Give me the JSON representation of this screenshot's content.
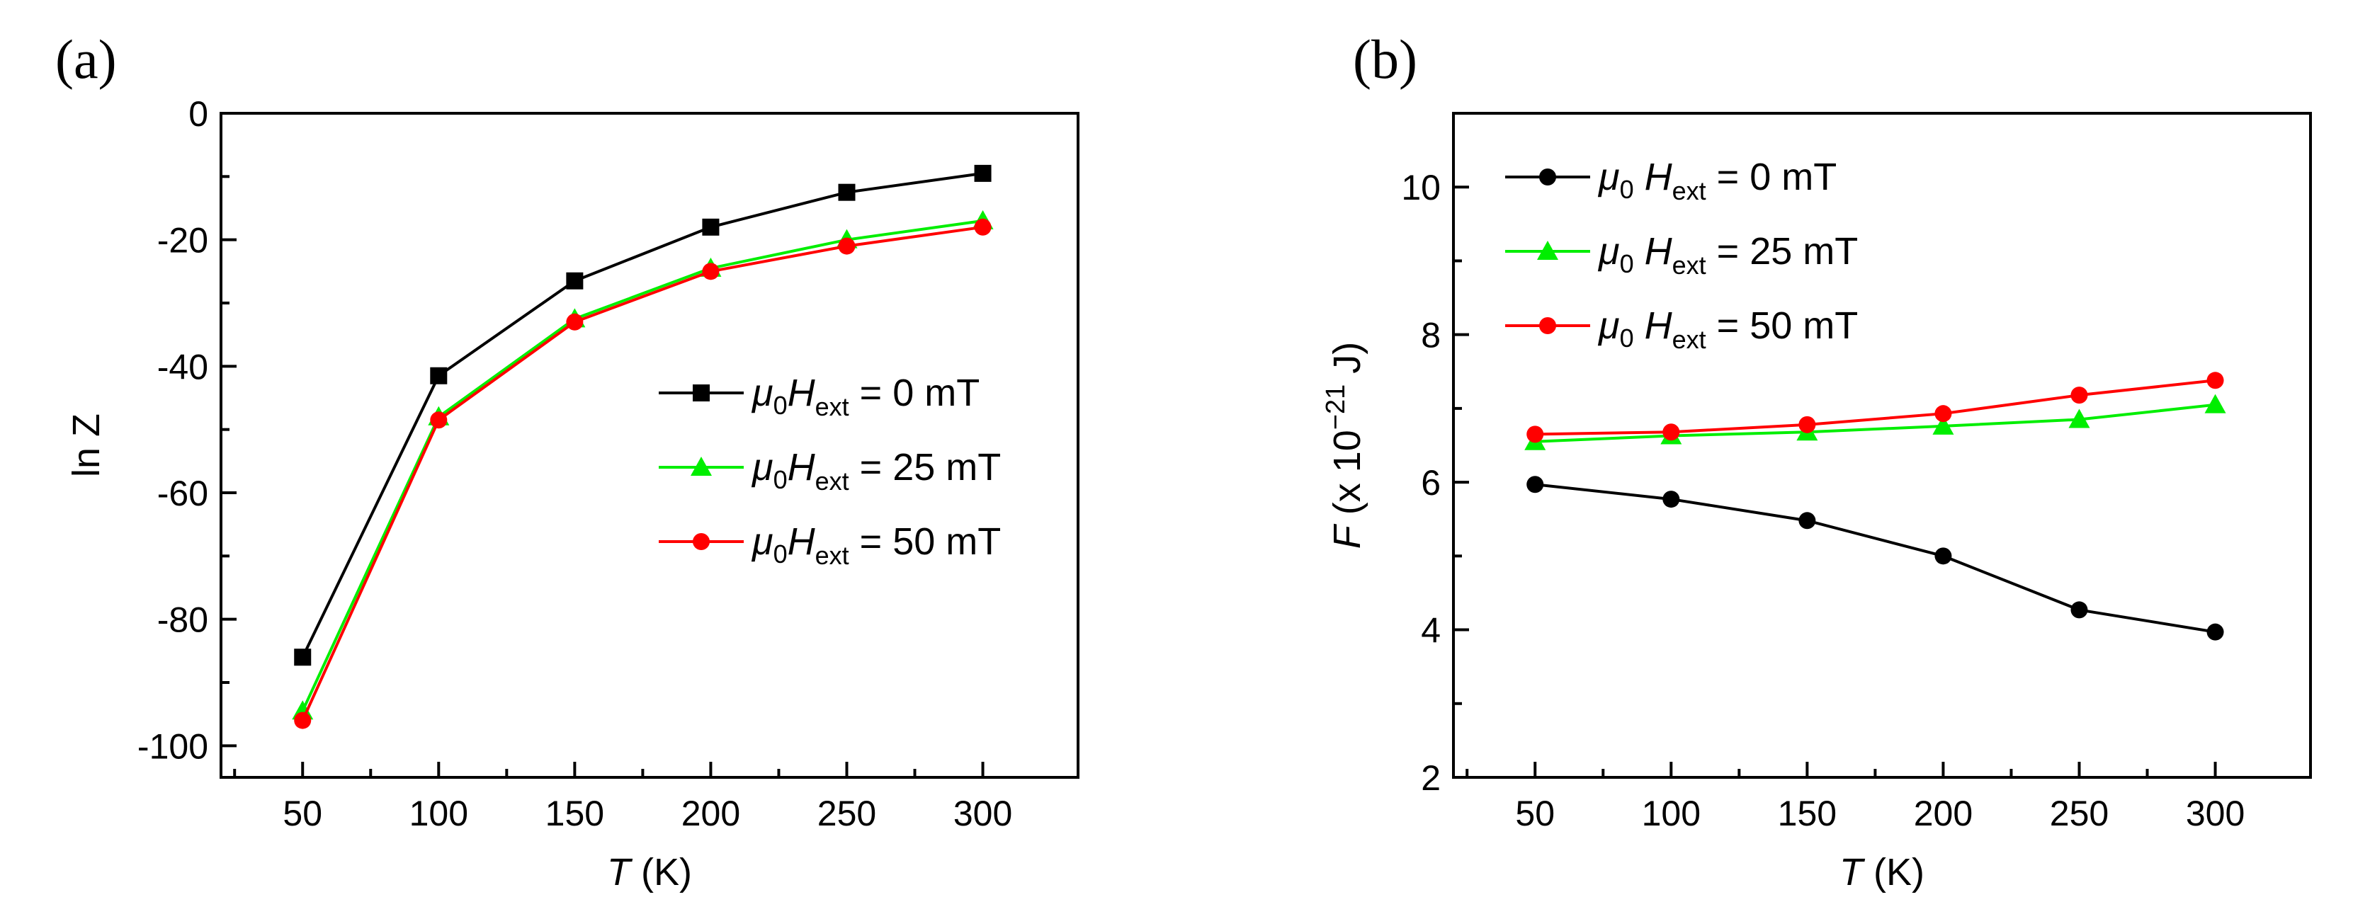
{
  "chart_data": [
    {
      "id": "a",
      "type": "line",
      "panel_label": "(a)",
      "x": [
        50,
        100,
        150,
        200,
        250,
        300
      ],
      "xticks": [
        50,
        100,
        150,
        200,
        250,
        300
      ],
      "xlim": [
        20,
        335
      ],
      "xlabel_italic": "T",
      "xlabel_rest": " (K)",
      "ylabel": "ln Z",
      "ylim": [
        -105,
        0
      ],
      "yticks": [
        0,
        -20,
        -40,
        -60,
        -80,
        -100
      ],
      "legend_position": "center-right",
      "series": [
        {
          "name": "μ0Hext = 0 mT",
          "mu": "μ",
          "mu_sub": "0",
          "h": "H",
          "h_sub": "ext",
          "value_text": " =  0 mT",
          "color": "#000000",
          "marker": "square",
          "values": [
            -86,
            -41.5,
            -26.5,
            -18,
            -12.5,
            -9.5
          ]
        },
        {
          "name": "μ0Hext = 25 mT",
          "mu": "μ",
          "mu_sub": "0",
          "h": "H",
          "h_sub": "ext",
          "value_text": " = 25 mT",
          "color": "#00ee00",
          "marker": "triangle",
          "values": [
            -94.5,
            -48,
            -32.5,
            -24.5,
            -20,
            -17
          ]
        },
        {
          "name": "μ0Hext = 50 mT",
          "mu": "μ",
          "mu_sub": "0",
          "h": "H",
          "h_sub": "ext",
          "value_text": " = 50 mT",
          "color": "#ff0000",
          "marker": "circle",
          "values": [
            -96,
            -48.5,
            -33,
            -25,
            -21,
            -18
          ]
        }
      ]
    },
    {
      "id": "b",
      "type": "line",
      "panel_label": "(b)",
      "x": [
        50,
        100,
        150,
        200,
        250,
        300
      ],
      "xticks": [
        50,
        100,
        150,
        200,
        250,
        300
      ],
      "xlim": [
        20,
        335
      ],
      "xlabel_italic": "T",
      "xlabel_rest": " (K)",
      "ylabel_italic": "F",
      "ylabel_rest": " (x 10",
      "ylabel_sup": "−21",
      "ylabel_end": " J)",
      "ylim": [
        2,
        11
      ],
      "yticks": [
        2,
        4,
        6,
        8,
        10
      ],
      "legend_position": "top-left",
      "series": [
        {
          "name": "μ0 Hext = 0 mT",
          "mu": "μ",
          "mu_sub": "0",
          "h": " H",
          "h_sub": "ext",
          "value_text": " =  0 mT",
          "color": "#000000",
          "marker": "circle",
          "values": [
            5.97,
            5.77,
            5.48,
            5.0,
            4.27,
            3.97
          ]
        },
        {
          "name": "μ0 Hext = 25 mT",
          "mu": "μ",
          "mu_sub": "0",
          "h": " H",
          "h_sub": "ext",
          "value_text": " = 25 mT",
          "color": "#00ee00",
          "marker": "triangle",
          "values": [
            6.55,
            6.63,
            6.68,
            6.76,
            6.85,
            7.05
          ]
        },
        {
          "name": "μ0 Hext = 50 mT",
          "mu": "μ",
          "mu_sub": "0",
          "h": " H",
          "h_sub": "ext",
          "value_text": " = 50 mT",
          "color": "#ff0000",
          "marker": "circle",
          "values": [
            6.65,
            6.68,
            6.78,
            6.93,
            7.18,
            7.38
          ]
        }
      ]
    }
  ]
}
